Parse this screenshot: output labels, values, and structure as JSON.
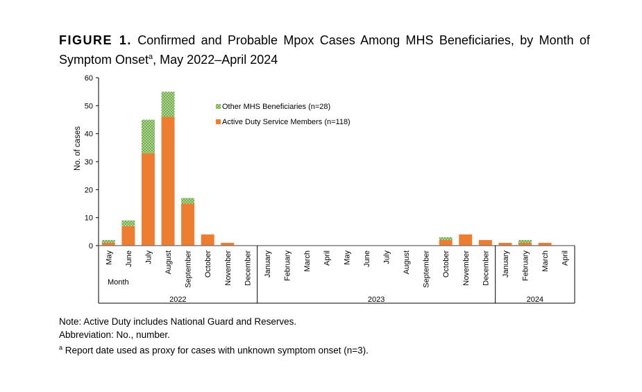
{
  "title": {
    "figure_label": "FIGURE 1.",
    "text": "Confirmed and Probable Mpox Cases Among MHS Beneficiaries, by Month of Symptom Onset",
    "superscript": "a",
    "suffix": ", May 2022–April 2024"
  },
  "notes": {
    "note": "Note: Active Duty includes National Guard and Reserves.",
    "abbreviation": "Abbreviation: No., number.",
    "footnote_marker": "a",
    "footnote": " Report date used as proxy for cases with unknown symptom onset (n=3)."
  },
  "chart_data": {
    "type": "bar",
    "stacked": true,
    "ylabel": "No. of cases",
    "xlabel": "Month",
    "ylim": [
      0,
      60
    ],
    "yticks": [
      0,
      10,
      20,
      30,
      40,
      50,
      60
    ],
    "grid": false,
    "legend_position": "top-center",
    "categories": [
      "May",
      "June",
      "July",
      "August",
      "September",
      "October",
      "November",
      "December",
      "January",
      "February",
      "March",
      "April",
      "May",
      "June",
      "July",
      "August",
      "September",
      "October",
      "November",
      "December",
      "January",
      "February",
      "March",
      "April"
    ],
    "years": [
      {
        "label": "2022",
        "count": 8
      },
      {
        "label": "2023",
        "count": 12
      },
      {
        "label": "2024",
        "count": 4
      }
    ],
    "series": [
      {
        "name": "Active Duty Service Members (n=118)",
        "color": "#ED7D31",
        "values": [
          1,
          7,
          33,
          46,
          15,
          4,
          1,
          0,
          0,
          0,
          0,
          0,
          0,
          0,
          0,
          0,
          0,
          2,
          4,
          2,
          1,
          1,
          1,
          0
        ]
      },
      {
        "name": "Other MHS Beneficiaries (n=28)",
        "color": "#70AD47",
        "values": [
          1,
          2,
          12,
          9,
          2,
          0,
          0,
          0,
          0,
          0,
          0,
          0,
          0,
          0,
          0,
          0,
          0,
          1,
          0,
          0,
          0,
          1,
          0,
          0
        ]
      }
    ]
  }
}
